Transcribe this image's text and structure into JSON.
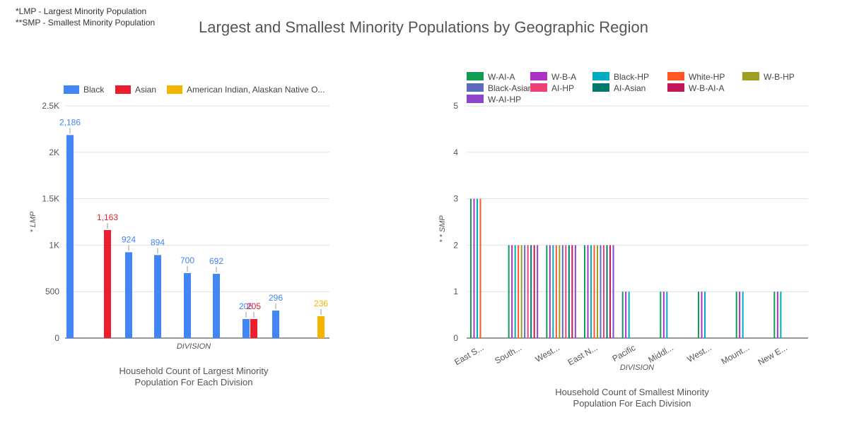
{
  "notes": {
    "line1": "*LMP - Largest Minority Population",
    "line2": "**SMP - Smallest Minority Population"
  },
  "title": "Largest and Smallest Minority Populations by Geographic Region",
  "captions": {
    "left_line1": "Household Count of Largest Minority",
    "left_line2": "Population For Each Division",
    "right_line1": "Household Count of Smallest Minority",
    "right_line2": "Population For Each Division"
  },
  "chart_data": [
    {
      "type": "bar",
      "xlabel": "DIVISION",
      "ylabel": "* LMP",
      "ylim": [
        0,
        2500
      ],
      "yticks": [
        {
          "value": 0,
          "label": "0"
        },
        {
          "value": 500,
          "label": "500"
        },
        {
          "value": 1000,
          "label": "1K"
        },
        {
          "value": 1500,
          "label": "1.5K"
        },
        {
          "value": 2000,
          "label": "2K"
        },
        {
          "value": 2500,
          "label": "2.5K"
        }
      ],
      "grid": true,
      "legend_position": "top",
      "legend": [
        {
          "name": "Black",
          "color": "#4285f4"
        },
        {
          "name": "Asian",
          "color": "#ea1e2c"
        },
        {
          "name": "American Indian, Alaskan Native O...",
          "color": "#f4b400"
        }
      ],
      "bars": [
        {
          "series": "Black",
          "value": 2186,
          "label": "2,186",
          "color": "#4285f4"
        },
        {
          "series": "Asian",
          "value": 1163,
          "label": "1,163",
          "color": "#ea1e2c"
        },
        {
          "series": "Black",
          "value": 924,
          "label": "924",
          "color": "#4285f4"
        },
        {
          "series": "Black",
          "value": 894,
          "label": "894",
          "color": "#4285f4"
        },
        {
          "series": "Black",
          "value": 700,
          "label": "700",
          "color": "#4285f4"
        },
        {
          "series": "Black",
          "value": 692,
          "label": "692",
          "color": "#4285f4"
        },
        {
          "series": "Black",
          "value": 205,
          "label": "205",
          "color": "#4285f4"
        },
        {
          "series": "Asian",
          "value": 205,
          "label": "205",
          "color": "#ea1e2c"
        },
        {
          "series": "Black",
          "value": 296,
          "label": "296",
          "color": "#4285f4"
        },
        {
          "series": "American Indian, Alaskan Native O...",
          "value": 236,
          "label": "236",
          "color": "#f4b400"
        }
      ]
    },
    {
      "type": "bar",
      "xlabel": "DIVISION",
      "ylabel": "* * SMP",
      "ylim": [
        0,
        5
      ],
      "yticks": [
        {
          "value": 0,
          "label": "0"
        },
        {
          "value": 1,
          "label": "1"
        },
        {
          "value": 2,
          "label": "2"
        },
        {
          "value": 3,
          "label": "3"
        },
        {
          "value": 4,
          "label": "4"
        },
        {
          "value": 5,
          "label": "5"
        }
      ],
      "grid": true,
      "legend_position": "top",
      "series": [
        {
          "name": "W-AI-A",
          "color": "#0f9d58"
        },
        {
          "name": "W-B-A",
          "color": "#ab30c4"
        },
        {
          "name": "Black-HP",
          "color": "#00acc1"
        },
        {
          "name": "White-HP",
          "color": "#ff5722"
        },
        {
          "name": "W-B-HP",
          "color": "#9e9d24"
        },
        {
          "name": "Black-Asian",
          "color": "#5c6bc0"
        },
        {
          "name": "AI-HP",
          "color": "#f0407a"
        },
        {
          "name": "AI-Asian",
          "color": "#00796b"
        },
        {
          "name": "W-B-AI-A",
          "color": "#c2185b"
        },
        {
          "name": "W-AI-HP",
          "color": "#8e44cf"
        }
      ],
      "categories": [
        "East S...",
        "South...",
        "West...",
        "East N...",
        "Pacific",
        "Middl...",
        "West...",
        "Mount...",
        "New E..."
      ],
      "groups": [
        [
          3,
          3,
          3,
          3
        ],
        [
          2,
          2,
          2,
          2,
          2,
          2,
          2,
          2,
          2,
          2
        ],
        [
          2,
          2,
          2,
          2,
          2,
          2,
          2,
          2,
          2,
          2
        ],
        [
          2,
          2,
          2,
          2,
          2,
          2,
          2,
          2,
          2,
          2
        ],
        [
          1,
          1,
          1
        ],
        [
          1,
          1,
          1
        ],
        [
          1,
          1,
          1
        ],
        [
          1,
          1,
          1
        ],
        [
          1,
          1,
          1
        ]
      ]
    }
  ]
}
